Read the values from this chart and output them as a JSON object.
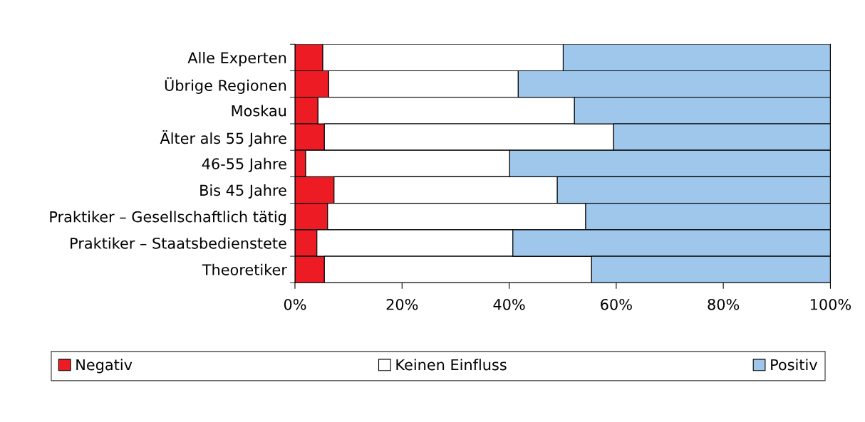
{
  "chart_data": {
    "type": "bar",
    "orientation": "horizontal",
    "stacked": true,
    "categories": [
      "Alle Experten",
      "Übrige Regionen",
      "Moskau",
      "Älter als 55 Jahre",
      "46-55 Jahre",
      "Bis 45 Jahre",
      "Praktiker – Gesellschaftlich tätig",
      "Praktiker – Staatsbedienstete",
      "Theoretiker"
    ],
    "series": [
      {
        "name": "Negativ",
        "color": "#ed1c24",
        "values": [
          5.2,
          6.3,
          4.3,
          5.5,
          2.0,
          7.3,
          6.1,
          4.1,
          5.5
        ]
      },
      {
        "name": "Keinen Einfluss",
        "color": "#ffffff",
        "values": [
          44.9,
          35.4,
          47.9,
          54.0,
          38.1,
          41.7,
          48.2,
          36.6,
          49.9
        ]
      },
      {
        "name": "Positiv",
        "color": "#9fc7eb",
        "values": [
          49.9,
          58.3,
          47.8,
          40.5,
          59.9,
          51.0,
          45.7,
          59.3,
          44.6
        ]
      }
    ],
    "xlim": [
      0,
      100
    ],
    "xticks": [
      {
        "value": 0,
        "label": "0%"
      },
      {
        "value": 20,
        "label": "20%"
      },
      {
        "value": 40,
        "label": "40%"
      },
      {
        "value": 60,
        "label": "60%"
      },
      {
        "value": 80,
        "label": "80%"
      },
      {
        "value": 100,
        "label": "100%"
      }
    ],
    "grid": false,
    "legend": "bottom"
  }
}
